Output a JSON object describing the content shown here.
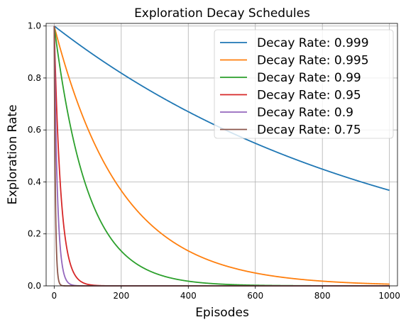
{
  "chart_data": {
    "type": "line",
    "title": "Exploration Decay Schedules",
    "xlabel": "Episodes",
    "ylabel": "Exploration Rate",
    "xlim": [
      -24,
      1024
    ],
    "ylim": [
      0,
      1.01
    ],
    "x_ticks": [
      0,
      200,
      400,
      600,
      800,
      1000
    ],
    "y_ticks": [
      0.0,
      0.2,
      0.4,
      0.6,
      0.8,
      1.0
    ],
    "x_tick_labels": [
      "0",
      "200",
      "400",
      "600",
      "800",
      "1000"
    ],
    "y_tick_labels": [
      "0.0",
      "0.2",
      "0.4",
      "0.6",
      "0.8",
      "1.0"
    ],
    "grid": true,
    "legend_position": "top-right",
    "x_start": 0,
    "x_end": 1000,
    "formula": "exploration_rate = decay_rate ^ episode",
    "series": [
      {
        "name": "Decay Rate: 0.999",
        "decay_rate": 0.999,
        "color": "#1f77b4"
      },
      {
        "name": "Decay Rate: 0.995",
        "decay_rate": 0.995,
        "color": "#ff7f0e"
      },
      {
        "name": "Decay Rate: 0.99",
        "decay_rate": 0.99,
        "color": "#2ca02c"
      },
      {
        "name": "Decay Rate: 0.95",
        "decay_rate": 0.95,
        "color": "#d62728"
      },
      {
        "name": "Decay Rate: 0.9",
        "decay_rate": 0.9,
        "color": "#9467bd"
      },
      {
        "name": "Decay Rate: 0.75",
        "decay_rate": 0.75,
        "color": "#8c564b"
      }
    ]
  }
}
